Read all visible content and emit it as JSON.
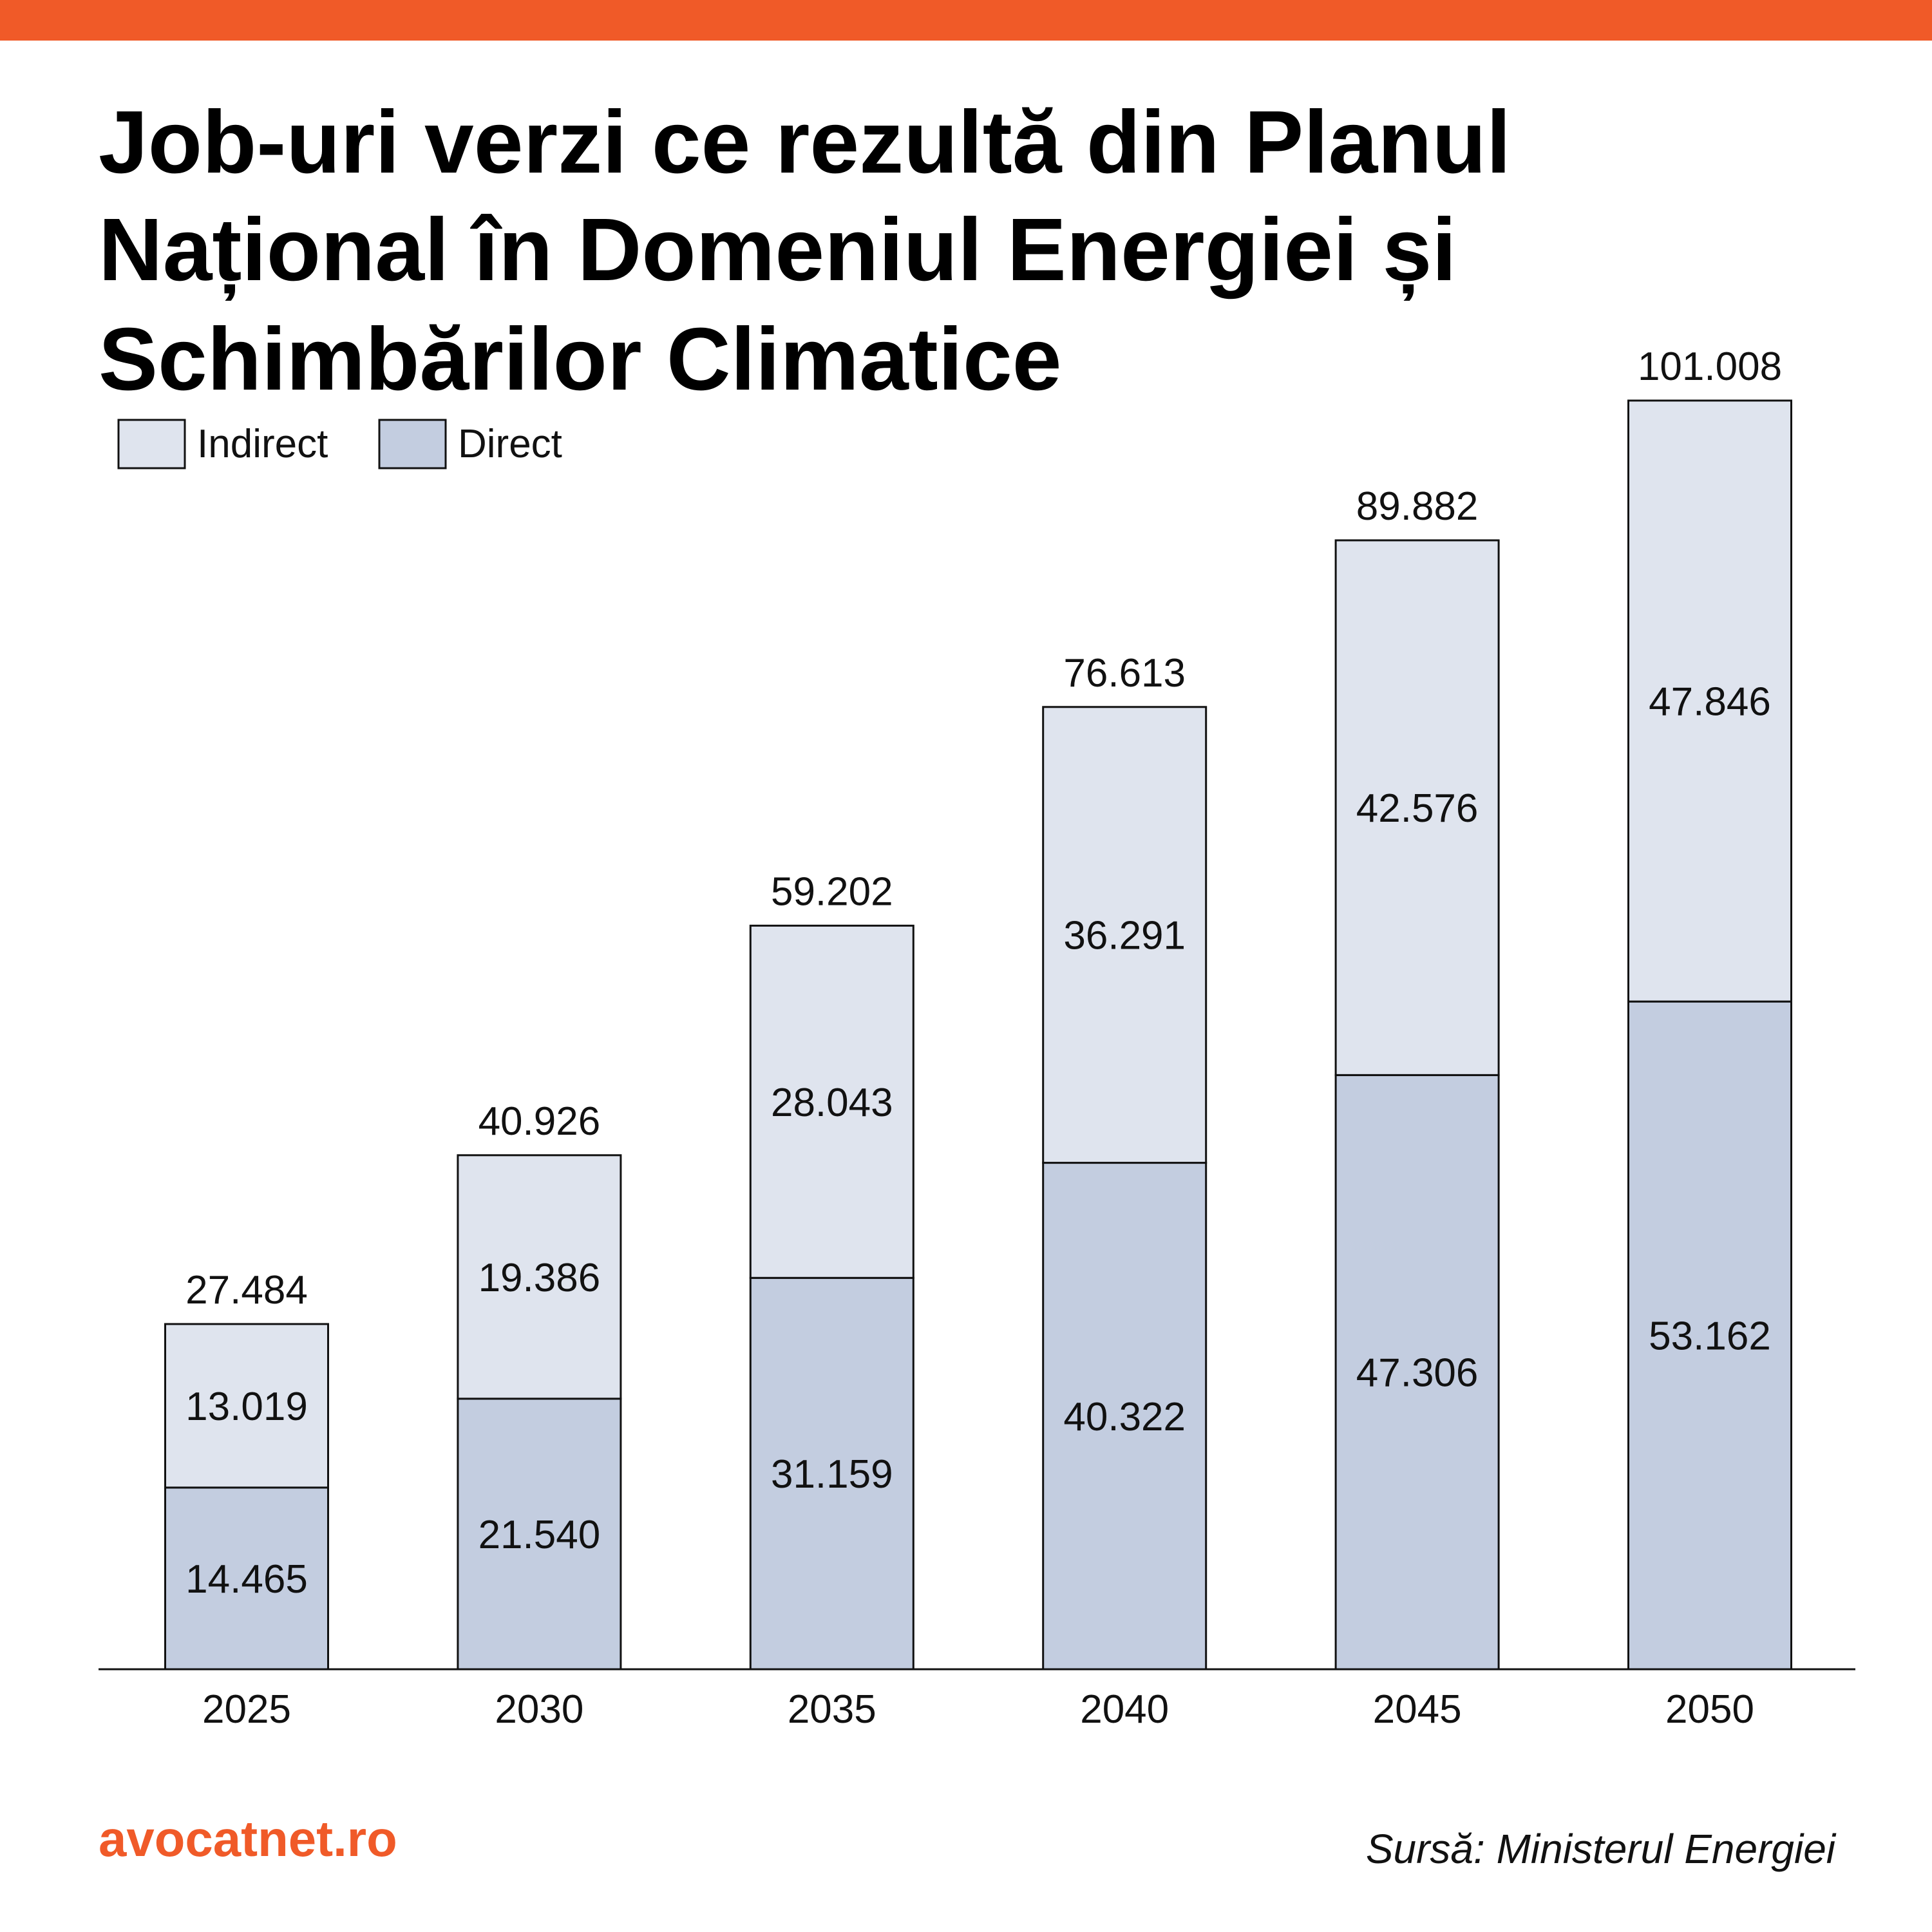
{
  "chart_data": {
    "type": "stacked-bar",
    "title": [
      "Job-uri verzi ce rezultă din Planul",
      "Național în Domeniul Energiei și",
      "Schimbărilor Climatice"
    ],
    "categories": [
      "2025",
      "2030",
      "2035",
      "2040",
      "2045",
      "2050"
    ],
    "series": [
      {
        "name": "Direct",
        "color": "#c3cde0",
        "values": [
          14465,
          21540,
          31159,
          40322,
          47306,
          53162
        ],
        "value_labels": [
          "14.465",
          "21.540",
          "31.159",
          "40.322",
          "47.306",
          "53.162"
        ]
      },
      {
        "name": "Indirect",
        "color": "#dfe4ee",
        "values": [
          13019,
          19386,
          28043,
          36291,
          42576,
          47846
        ],
        "value_labels": [
          "13.019",
          "19.386",
          "28.043",
          "36.291",
          "42.576",
          "47.846"
        ]
      }
    ],
    "totals": {
      "values": [
        27484,
        40926,
        59202,
        76613,
        89882,
        101008
      ],
      "value_labels": [
        "27.484",
        "40.926",
        "59.202",
        "76.613",
        "89.882",
        "101.008"
      ]
    },
    "source": "Sursă: Ministerul Energiei",
    "brand": "avocatnet.ro"
  }
}
